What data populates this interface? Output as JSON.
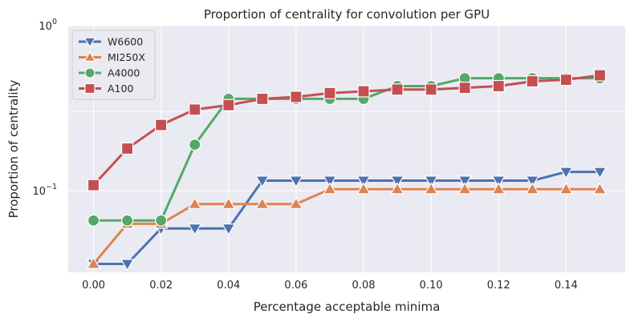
{
  "chart_data": {
    "type": "line",
    "title": "Proportion of centrality for convolution per GPU",
    "xlabel": "Percentage acceptable minima",
    "ylabel": "Proportion of centrality",
    "xlim": [
      -0.0075,
      0.1575
    ],
    "ylim": [
      0.032,
      1.0
    ],
    "yscale": "log",
    "xticks": [
      "0.00",
      "0.02",
      "0.04",
      "0.06",
      "0.08",
      "0.10",
      "0.12",
      "0.14"
    ],
    "yticks": [
      {
        "base": "10",
        "exp": "0",
        "value": 1.0
      },
      {
        "base": "10",
        "exp": "−1",
        "value": 0.1
      }
    ],
    "grid": true,
    "legend_position": "upper-left",
    "x": [
      0.0,
      0.01,
      0.02,
      0.03,
      0.04,
      0.05,
      0.06,
      0.07,
      0.08,
      0.09,
      0.1,
      0.11,
      0.12,
      0.13,
      0.14,
      0.15
    ],
    "series": [
      {
        "name": "W6600",
        "color": "#4c72b0",
        "marker": "triangle-down",
        "values": [
          0.036,
          0.036,
          0.059,
          0.059,
          0.059,
          0.115,
          0.115,
          0.115,
          0.115,
          0.115,
          0.115,
          0.115,
          0.115,
          0.115,
          0.13,
          0.13
        ]
      },
      {
        "name": "MI250X",
        "color": "#dd8452",
        "marker": "triangle-up",
        "values": [
          0.036,
          0.063,
          0.063,
          0.083,
          0.083,
          0.083,
          0.083,
          0.102,
          0.102,
          0.102,
          0.102,
          0.102,
          0.102,
          0.102,
          0.102,
          0.102
        ]
      },
      {
        "name": "A4000",
        "color": "#55a868",
        "marker": "circle",
        "values": [
          0.066,
          0.066,
          0.066,
          0.19,
          0.36,
          0.36,
          0.36,
          0.36,
          0.36,
          0.43,
          0.43,
          0.48,
          0.48,
          0.48,
          0.48,
          0.48
        ]
      },
      {
        "name": "A100",
        "color": "#c44e52",
        "marker": "square",
        "values": [
          0.108,
          0.18,
          0.25,
          0.31,
          0.33,
          0.36,
          0.37,
          0.39,
          0.4,
          0.41,
          0.41,
          0.42,
          0.43,
          0.46,
          0.47,
          0.5
        ]
      }
    ]
  }
}
